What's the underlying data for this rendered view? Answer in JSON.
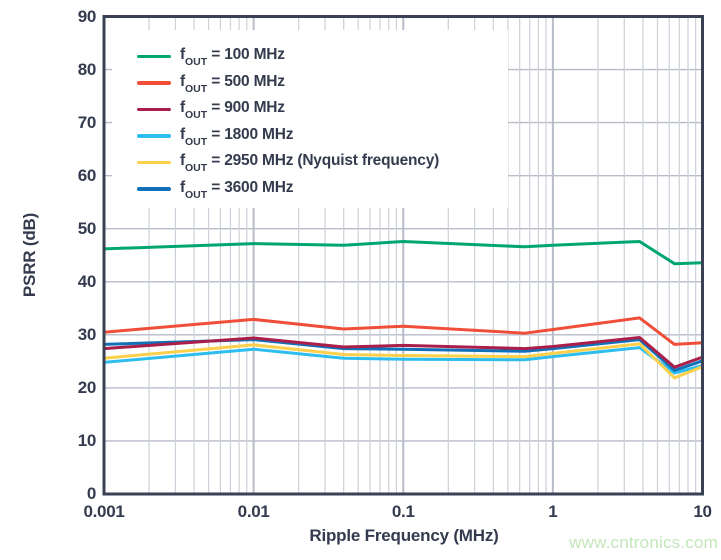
{
  "chart_data": {
    "type": "line",
    "title": "",
    "xlabel": "Ripple Frequency (MHz)",
    "ylabel": "PSRR (dB)",
    "x_scale": "log",
    "xlim": [
      0.001,
      10
    ],
    "ylim": [
      0,
      90
    ],
    "x_tick_labels": [
      "0.001",
      "0.01",
      "0.1",
      "1",
      "10"
    ],
    "x_tick_values": [
      0.001,
      0.01,
      0.1,
      1,
      10
    ],
    "y_tick_values": [
      0,
      10,
      20,
      30,
      40,
      50,
      60,
      70,
      80,
      90
    ],
    "grid": "on",
    "legend_position": "top-left",
    "x": [
      0.001,
      0.01,
      0.04,
      0.1,
      0.65,
      1,
      3.8,
      6.5,
      10
    ],
    "series": [
      {
        "name": "fOUT = 100 MHz",
        "label_prefix": "f",
        "label_sub": "OUT",
        "label_rest": " = 100 MHz",
        "color": "#00a672",
        "values": [
          46.2,
          47.2,
          46.9,
          47.6,
          46.6,
          46.9,
          47.6,
          43.4,
          43.6
        ]
      },
      {
        "name": "fOUT = 500 MHz",
        "label_prefix": "f",
        "label_sub": "OUT",
        "label_rest": " = 500 MHz",
        "color": "#f04e38",
        "values": [
          30.5,
          32.9,
          31.1,
          31.6,
          30.3,
          31.0,
          33.2,
          28.2,
          28.5
        ]
      },
      {
        "name": "fOUT = 900 MHz",
        "label_prefix": "f",
        "label_sub": "OUT",
        "label_rest": " = 900 MHz",
        "color": "#aa1f4a",
        "values": [
          27.4,
          29.4,
          27.7,
          28.0,
          27.4,
          27.8,
          29.5,
          23.9,
          25.8
        ]
      },
      {
        "name": "fOUT = 1800 MHz",
        "label_prefix": "f",
        "label_sub": "OUT",
        "label_rest": " = 1800 MHz",
        "color": "#2dbdee",
        "values": [
          24.8,
          27.3,
          25.6,
          25.4,
          25.3,
          25.9,
          27.6,
          22.8,
          24.2
        ]
      },
      {
        "name": "fOUT = 2950 MHz (Nyquist frequency)",
        "label_prefix": "f",
        "label_sub": "OUT",
        "label_rest": " = 2950 MHz (Nyquist frequency)",
        "color": "#fdd04b",
        "values": [
          25.6,
          28.1,
          26.3,
          26.1,
          25.9,
          26.5,
          28.3,
          21.9,
          24.0
        ]
      },
      {
        "name": "fOUT = 3600 MHz",
        "label_prefix": "f",
        "label_sub": "OUT",
        "label_rest": " = 3600 MHz",
        "color": "#1071b8",
        "values": [
          28.2,
          29.1,
          27.4,
          27.3,
          26.9,
          27.4,
          29.1,
          23.3,
          25.1
        ]
      }
    ],
    "colors": {
      "axis_border": "#3a4154",
      "grid_major": "#b7bcc8",
      "grid_minor": "#ccd0d8",
      "text": "#343b4e",
      "watermark": "#c3e6ba"
    }
  },
  "watermark_text": "www.cntronics.com"
}
